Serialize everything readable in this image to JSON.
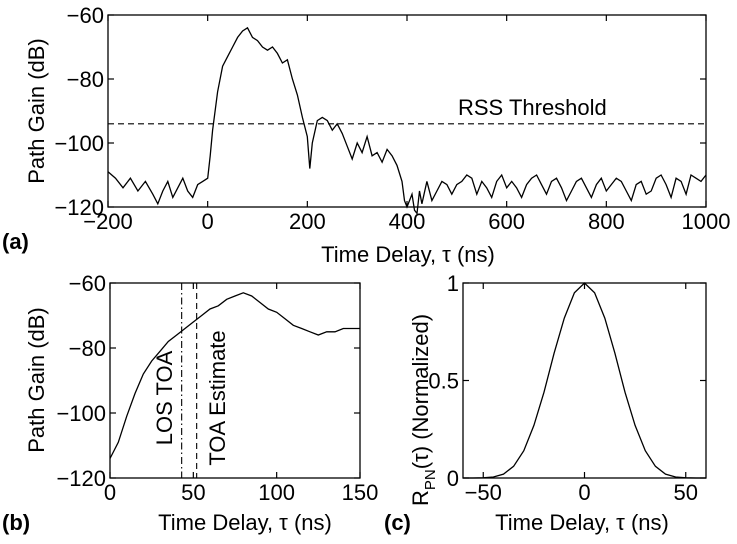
{
  "chart_data": [
    {
      "panel": "(a)",
      "type": "line",
      "xlabel": "Time Delay, τ (ns)",
      "ylabel": "Path Gain (dB)",
      "xlim": [
        -200,
        1000
      ],
      "ylim": [
        -120,
        -60
      ],
      "xticks": [
        -200,
        0,
        200,
        400,
        600,
        800,
        1000
      ],
      "yticks": [
        -60,
        -80,
        -100,
        -120
      ],
      "grid": false,
      "series": [
        {
          "x": [
            -200,
            -185,
            -170,
            -155,
            -140,
            -125,
            -110,
            -100,
            -90,
            -80,
            -70,
            -60,
            -50,
            -40,
            -30,
            -20,
            -10,
            0,
            5,
            10,
            20,
            30,
            40,
            50,
            60,
            70,
            80,
            90,
            100,
            110,
            120,
            130,
            140,
            150,
            160,
            170,
            180,
            190,
            200,
            205,
            210,
            220,
            230,
            240,
            250,
            260,
            270,
            280,
            290,
            300,
            310,
            320,
            330,
            340,
            350,
            360,
            370,
            380,
            390,
            395,
            400,
            405,
            410,
            415,
            420,
            425,
            430,
            440,
            450,
            460,
            470,
            480,
            490,
            500,
            510,
            520,
            530,
            540,
            550,
            560,
            570,
            580,
            590,
            600,
            610,
            620,
            630,
            640,
            650,
            660,
            670,
            680,
            690,
            700,
            710,
            720,
            730,
            740,
            750,
            760,
            770,
            780,
            790,
            800,
            810,
            820,
            830,
            840,
            850,
            860,
            870,
            880,
            890,
            900,
            910,
            920,
            930,
            940,
            950,
            960,
            970,
            980,
            990,
            1000
          ],
          "y": [
            -109,
            -111,
            -114,
            -111,
            -115,
            -112,
            -116,
            -119,
            -115,
            -112,
            -117,
            -114,
            -111,
            -115,
            -117,
            -113,
            -112,
            -111,
            -104,
            -96,
            -84,
            -76,
            -73,
            -70,
            -67,
            -65,
            -64,
            -67,
            -68,
            -70,
            -71,
            -70,
            -72,
            -75,
            -74,
            -80,
            -85,
            -92,
            -98,
            -108,
            -100,
            -93,
            -92,
            -93,
            -96,
            -94,
            -97,
            -101,
            -105,
            -100,
            -103,
            -98,
            -104,
            -103,
            -106,
            -102,
            -104,
            -107,
            -112,
            -118,
            -120,
            -118,
            -116,
            -121,
            -122,
            -115,
            -119,
            -112,
            -118,
            -115,
            -112,
            -113,
            -116,
            -113,
            -112,
            -110,
            -111,
            -116,
            -112,
            -114,
            -117,
            -112,
            -110,
            -114,
            -112,
            -114,
            -117,
            -113,
            -111,
            -110,
            -113,
            -116,
            -112,
            -111,
            -114,
            -118,
            -115,
            -112,
            -111,
            -114,
            -117,
            -113,
            -111,
            -115,
            -113,
            -111,
            -112,
            -115,
            -118,
            -113,
            -112,
            -116,
            -115,
            -111,
            -110,
            -113,
            -117,
            -111,
            -112,
            -116,
            -110,
            -111,
            -112,
            -110
          ]
        }
      ],
      "annotations": [
        {
          "text": "RSS Threshold",
          "x": 575,
          "y": -94
        }
      ],
      "threshold": {
        "y": -94,
        "style": "dashed"
      }
    },
    {
      "panel": "(b)",
      "type": "line",
      "xlabel": "Time Delay, τ (ns)",
      "ylabel": "Path Gain (dB)",
      "xlim": [
        0,
        150
      ],
      "ylim": [
        -120,
        -60
      ],
      "xticks": [
        0,
        50,
        100,
        150
      ],
      "yticks": [
        -60,
        -80,
        -100,
        -120
      ],
      "grid": false,
      "series": [
        {
          "x": [
            0,
            5,
            10,
            15,
            20,
            25,
            30,
            35,
            40,
            45,
            50,
            55,
            60,
            65,
            70,
            75,
            80,
            85,
            90,
            95,
            100,
            105,
            110,
            115,
            120,
            125,
            130,
            135,
            140,
            145,
            150
          ],
          "y": [
            -114,
            -109,
            -101,
            -94,
            -88,
            -84,
            -81,
            -78,
            -76,
            -74,
            -72,
            -70,
            -68,
            -67,
            -65,
            -64,
            -63,
            -64,
            -66,
            -68,
            -69,
            -71,
            -73,
            -74,
            -75,
            -76,
            -75,
            -75,
            -74,
            -74,
            -74
          ]
        }
      ],
      "vlines": [
        {
          "label": "LOS TOA",
          "x": 43,
          "style": "dash-dot"
        },
        {
          "label": "TOA Estimate",
          "x": 52,
          "style": "dashed"
        }
      ]
    },
    {
      "panel": "(c)",
      "type": "line",
      "xlabel": "Time Delay, τ (ns)",
      "ylabel_main": "R",
      "ylabel_sub": "PN",
      "ylabel_rest": "(τ) (Normalized)",
      "xlim": [
        -60,
        60
      ],
      "ylim": [
        0,
        1
      ],
      "xticks": [
        -50,
        0,
        50
      ],
      "yticks": [
        1,
        0.5,
        0
      ],
      "grid": false,
      "series": [
        {
          "x": [
            -60,
            -55,
            -50,
            -45,
            -40,
            -35,
            -30,
            -25,
            -20,
            -15,
            -10,
            -5,
            0,
            5,
            10,
            15,
            20,
            25,
            30,
            35,
            40,
            45,
            50,
            55,
            60
          ],
          "y": [
            0,
            0,
            0.001,
            0.005,
            0.02,
            0.06,
            0.14,
            0.27,
            0.44,
            0.64,
            0.82,
            0.95,
            1,
            0.95,
            0.82,
            0.64,
            0.44,
            0.27,
            0.14,
            0.06,
            0.02,
            0.005,
            0.001,
            0,
            0
          ]
        }
      ]
    }
  ]
}
